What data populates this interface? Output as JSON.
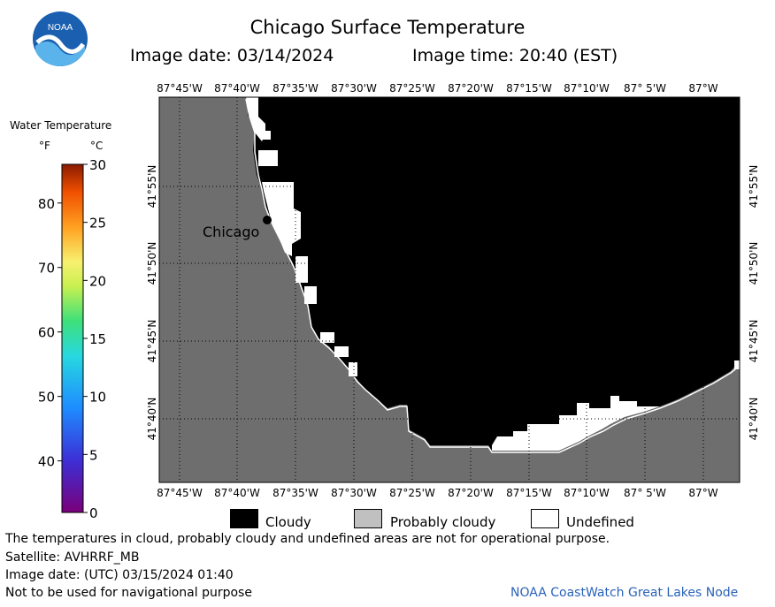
{
  "header": {
    "title": "Chicago Surface Temperature",
    "image_date": "Image date: 03/14/2024",
    "image_time": "Image time: 20:40 (EST)",
    "logo_text": "NOAA"
  },
  "legend": {
    "title": "Water Temperature",
    "unit_f": "°F",
    "unit_c": "°C",
    "f_ticks": [
      "80",
      "70",
      "60",
      "50",
      "40"
    ],
    "c_ticks": [
      "30",
      "25",
      "20",
      "15",
      "10",
      "5",
      "0"
    ]
  },
  "map": {
    "lon_labels": [
      "87°45'W",
      "87°40'W",
      "87°35'W",
      "87°30'W",
      "87°25'W",
      "87°20'W",
      "87°15'W",
      "87°10'W",
      "87° 5'W",
      "87°W"
    ],
    "lat_labels": [
      "41°55'N",
      "41°50'N",
      "41°45'N",
      "41°40'N"
    ],
    "city_label": "Chicago",
    "colors": {
      "land": "#6e6e6e",
      "cloudy": "#000000",
      "probably_cloudy": "#c0c0c0",
      "undefined": "#ffffff"
    }
  },
  "key": {
    "cloudy": "Cloudy",
    "probably_cloudy": "Probably cloudy",
    "undefined": "Undefined"
  },
  "footer": {
    "disclaimer": "The temperatures in cloud, probably cloudy and undefined areas are not for operational purpose.",
    "satellite": "Satellite: AVHRRF_MB",
    "utc_date": "Image date: (UTC) 03/15/2024  01:40",
    "navigation": "Not to be used for navigational purpose",
    "credit": "NOAA CoastWatch Great Lakes Node"
  }
}
